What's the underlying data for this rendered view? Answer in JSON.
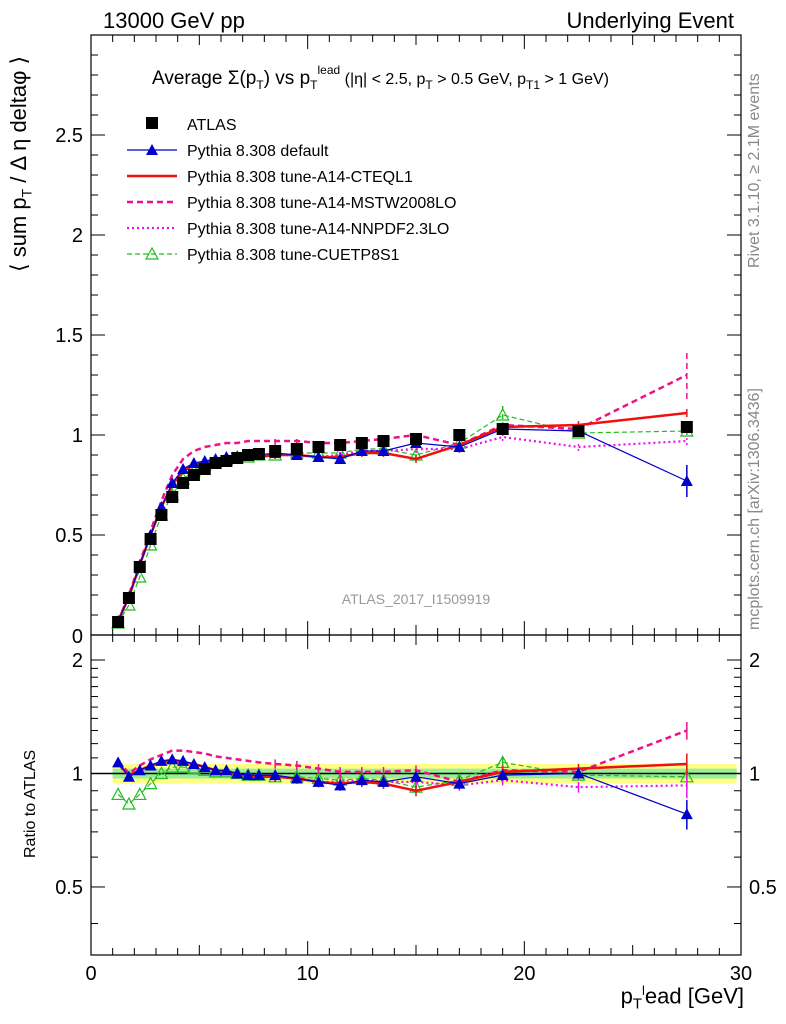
{
  "header": {
    "left": "13000 GeV pp",
    "right": "Underlying Event"
  },
  "side": {
    "rivet": "Rivet 3.1.10, ≥ 2.1M events",
    "mcplots": "mcplots.cern.ch [arXiv:1306.3436]"
  },
  "plot_title": "Average Σ(p_T) vs p_T^lead (|η| < 2.5, p_T > 0.5 GeV, p_T1 > 1 GeV)",
  "watermark": "ATLAS_2017_I1509919",
  "colors": {
    "data": "#000000",
    "default": "#0000cc",
    "cteql1": "#ee1111",
    "mstw": "#ee1188",
    "nnpdf": "#ee11ee",
    "cuetp8s1": "#22bb22",
    "band_inner": "#99ee99",
    "band_outer": "#ffff88"
  },
  "chart_data": [
    {
      "type": "scatter",
      "panel": "main",
      "title": "Average Σ(p_T) vs p_T^lead (|η| < 2.5, p_T > 0.5 GeV, p_T1 > 1 GeV)",
      "xlabel": "p_T^lead [GeV]",
      "ylabel": "⟨ sum p_T / Δη deltaφ ⟩",
      "xlim": [
        0,
        30
      ],
      "ylim": [
        0,
        3.0
      ],
      "yticks": [
        0.5,
        1,
        1.5,
        2,
        2.5
      ],
      "ytick_labels": [
        "0.5",
        "1",
        "1.5",
        "2",
        "2.5"
      ],
      "x": [
        1.25,
        1.75,
        2.25,
        2.75,
        3.25,
        3.75,
        4.25,
        4.75,
        5.25,
        5.75,
        6.25,
        6.75,
        7.25,
        7.75,
        8.5,
        9.5,
        10.5,
        11.5,
        12.5,
        13.5,
        15,
        17,
        19,
        22.5,
        27.5
      ],
      "legend": [
        {
          "label": "ATLAS",
          "key": "data"
        },
        {
          "label": "Pythia 8.308 default",
          "key": "default"
        },
        {
          "label": "Pythia 8.308 tune-A14-CTEQL1",
          "key": "cteql1"
        },
        {
          "label": "Pythia 8.308 tune-A14-MSTW2008LO",
          "key": "mstw"
        },
        {
          "label": "Pythia 8.308 tune-A14-NNPDF2.3LO",
          "key": "nnpdf"
        },
        {
          "label": "Pythia 8.308 tune-CUETP8S1",
          "key": "cuetp8s1"
        }
      ],
      "series": [
        {
          "name": "ATLAS",
          "key": "data",
          "values": [
            0.065,
            0.185,
            0.34,
            0.48,
            0.6,
            0.69,
            0.76,
            0.8,
            0.83,
            0.86,
            0.87,
            0.885,
            0.9,
            0.905,
            0.92,
            0.93,
            0.94,
            0.95,
            0.96,
            0.97,
            0.98,
            1.0,
            1.03,
            1.02,
            1.04
          ]
        },
        {
          "name": "Pythia 8.308 default",
          "key": "default",
          "values": [
            0.07,
            0.19,
            0.35,
            0.5,
            0.64,
            0.76,
            0.83,
            0.86,
            0.87,
            0.88,
            0.89,
            0.89,
            0.9,
            0.9,
            0.91,
            0.9,
            0.89,
            0.88,
            0.92,
            0.92,
            0.96,
            0.94,
            1.03,
            1.02,
            0.77
          ]
        },
        {
          "name": "Pythia 8.308 tune-A14-CTEQL1",
          "key": "cteql1",
          "values": [
            0.07,
            0.19,
            0.35,
            0.5,
            0.64,
            0.75,
            0.82,
            0.85,
            0.86,
            0.87,
            0.88,
            0.88,
            0.89,
            0.89,
            0.9,
            0.9,
            0.89,
            0.89,
            0.91,
            0.91,
            0.88,
            0.95,
            1.04,
            1.05,
            1.11
          ]
        },
        {
          "name": "Pythia 8.308 tune-A14-MSTW2008LO",
          "key": "mstw",
          "values": [
            0.07,
            0.2,
            0.36,
            0.52,
            0.67,
            0.8,
            0.88,
            0.92,
            0.94,
            0.95,
            0.96,
            0.96,
            0.97,
            0.97,
            0.97,
            0.97,
            0.96,
            0.96,
            0.97,
            0.98,
            1.0,
            0.95,
            1.05,
            1.03,
            1.3
          ]
        },
        {
          "name": "Pythia 8.308 tune-A14-NNPDF2.3LO",
          "key": "nnpdf",
          "values": [
            0.07,
            0.19,
            0.35,
            0.5,
            0.64,
            0.75,
            0.82,
            0.85,
            0.86,
            0.87,
            0.88,
            0.88,
            0.89,
            0.89,
            0.9,
            0.9,
            0.89,
            0.9,
            0.92,
            0.92,
            0.93,
            0.93,
            0.99,
            0.94,
            0.97
          ]
        },
        {
          "name": "Pythia 8.308 tune-CUETP8S1",
          "key": "cuetp8s1",
          "values": [
            0.06,
            0.15,
            0.29,
            0.45,
            0.6,
            0.7,
            0.78,
            0.82,
            0.85,
            0.87,
            0.88,
            0.89,
            0.89,
            0.9,
            0.9,
            0.91,
            0.91,
            0.91,
            0.93,
            0.93,
            0.9,
            0.96,
            1.1,
            1.01,
            1.02
          ]
        }
      ],
      "errors": {
        "default": {
          "24": 0.08
        },
        "mstw": {
          "24": 0.12
        },
        "cuetp8s1": {
          "22": 0.06
        }
      }
    },
    {
      "type": "line",
      "panel": "ratio",
      "xlabel": "p_T^lead [GeV]",
      "ylabel": "Ratio to ATLAS",
      "xlim": [
        0,
        30
      ],
      "ylim": [
        0.33,
        2.33
      ],
      "xticks": [
        0,
        10,
        20,
        30
      ],
      "xtick_labels": [
        "0",
        "10",
        "20",
        "30"
      ],
      "yticks": [
        0.5,
        1,
        2
      ],
      "ytick_labels": [
        "0.5",
        "1",
        "2"
      ],
      "x": [
        1.25,
        1.75,
        2.25,
        2.75,
        3.25,
        3.75,
        4.25,
        4.75,
        5.25,
        5.75,
        6.25,
        6.75,
        7.25,
        7.75,
        8.5,
        9.5,
        10.5,
        11.5,
        12.5,
        13.5,
        15,
        17,
        19,
        22.5,
        27.5
      ],
      "band_inner": 0.03,
      "band_outer": 0.06,
      "series": [
        {
          "name": "Pythia 8.308 default",
          "key": "default",
          "values": [
            1.07,
            0.98,
            1.02,
            1.05,
            1.08,
            1.09,
            1.08,
            1.06,
            1.04,
            1.02,
            1.02,
            1.0,
            0.99,
            0.99,
            0.99,
            0.97,
            0.95,
            0.93,
            0.96,
            0.95,
            0.98,
            0.94,
            0.99,
            1.0,
            0.78
          ]
        },
        {
          "name": "Pythia 8.308 tune-A14-CTEQL1",
          "key": "cteql1",
          "values": [
            1.06,
            0.99,
            1.02,
            1.05,
            1.07,
            1.08,
            1.07,
            1.06,
            1.04,
            1.02,
            1.01,
            0.99,
            0.99,
            0.98,
            0.98,
            0.97,
            0.95,
            0.94,
            0.95,
            0.94,
            0.9,
            0.95,
            1.01,
            1.03,
            1.06
          ]
        },
        {
          "name": "Pythia 8.308 tune-A14-MSTW2008LO",
          "key": "mstw",
          "values": [
            1.08,
            1.0,
            1.05,
            1.09,
            1.12,
            1.15,
            1.15,
            1.14,
            1.13,
            1.11,
            1.1,
            1.09,
            1.08,
            1.07,
            1.06,
            1.05,
            1.03,
            1.01,
            1.01,
            1.01,
            1.02,
            0.95,
            1.02,
            1.01,
            1.3
          ]
        },
        {
          "name": "Pythia 8.308 tune-A14-NNPDF2.3LO",
          "key": "nnpdf",
          "values": [
            1.06,
            0.98,
            1.02,
            1.05,
            1.07,
            1.08,
            1.07,
            1.06,
            1.04,
            1.02,
            1.01,
            0.99,
            0.99,
            0.98,
            0.98,
            0.97,
            0.95,
            0.95,
            0.96,
            0.95,
            0.95,
            0.93,
            0.96,
            0.92,
            0.93
          ]
        },
        {
          "name": "Pythia 8.308 tune-CUETP8S1",
          "key": "cuetp8s1",
          "values": [
            0.88,
            0.83,
            0.88,
            0.94,
            1.0,
            1.04,
            1.04,
            1.03,
            1.02,
            1.01,
            1.01,
            1.0,
            0.99,
            0.99,
            0.98,
            0.98,
            0.97,
            0.96,
            0.97,
            0.96,
            0.92,
            0.96,
            1.07,
            0.99,
            0.98
          ]
        }
      ]
    }
  ]
}
